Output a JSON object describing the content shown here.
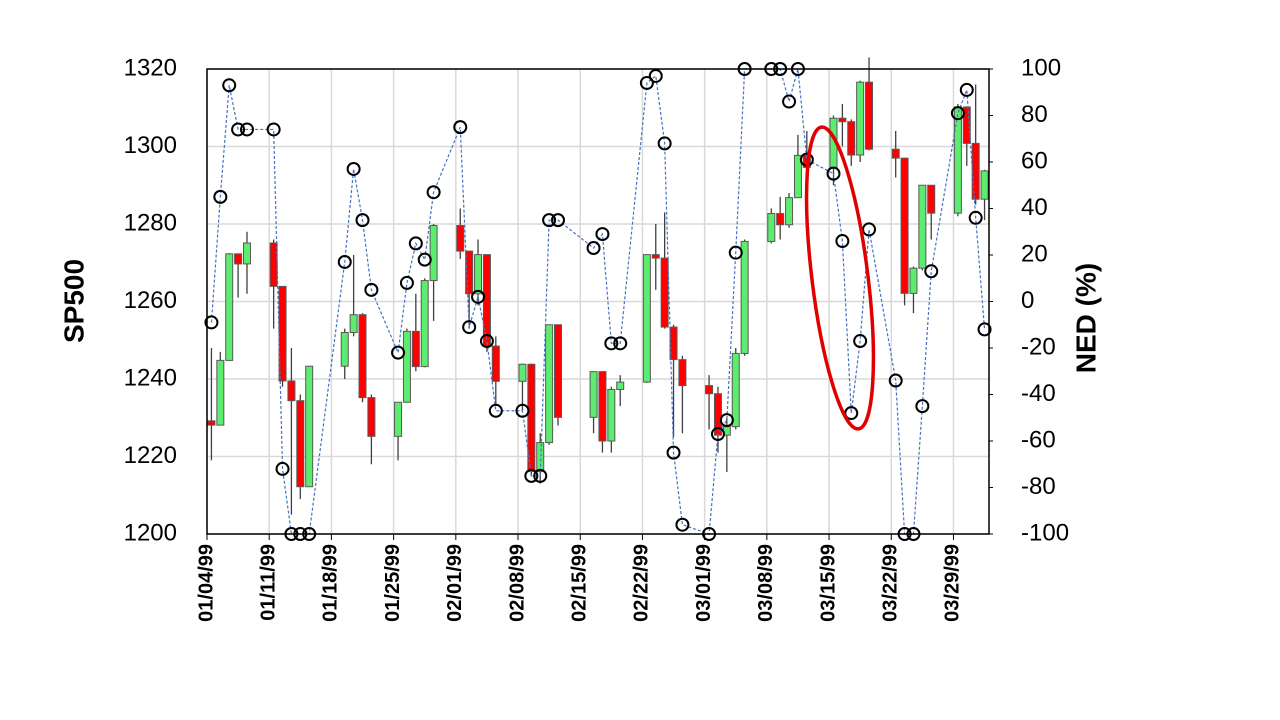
{
  "chart_data": {
    "type": "candlestick",
    "x": [
      "01/04/99",
      "01/05/99",
      "01/06/99",
      "01/07/99",
      "01/08/99",
      "01/11/99",
      "01/12/99",
      "01/13/99",
      "01/14/99",
      "01/15/99",
      "01/19/99",
      "01/20/99",
      "01/21/99",
      "01/22/99",
      "01/25/99",
      "01/26/99",
      "01/27/99",
      "01/28/99",
      "01/29/99",
      "02/01/99",
      "02/02/99",
      "02/03/99",
      "02/04/99",
      "02/05/99",
      "02/08/99",
      "02/09/99",
      "02/10/99",
      "02/11/99",
      "02/12/99",
      "02/16/99",
      "02/17/99",
      "02/18/99",
      "02/19/99",
      "02/22/99",
      "02/23/99",
      "02/24/99",
      "02/25/99",
      "02/26/99",
      "03/01/99",
      "03/02/99",
      "03/03/99",
      "03/04/99",
      "03/05/99",
      "03/08/99",
      "03/09/99",
      "03/10/99",
      "03/11/99",
      "03/12/99",
      "03/15/99",
      "03/16/99",
      "03/17/99",
      "03/18/99",
      "03/19/99",
      "03/22/99",
      "03/23/99",
      "03/24/99",
      "03/25/99",
      "03/26/99",
      "03/29/99",
      "03/30/99",
      "03/31/99",
      "04/01/99"
    ],
    "open": [
      1229.2,
      1228.1,
      1244.8,
      1272.3,
      1269.7,
      1275.1,
      1263.9,
      1239.5,
      1234.4,
      1212.2,
      1243.3,
      1252.0,
      1256.6,
      1235.2,
      1225.2,
      1234.0,
      1252.3,
      1243.2,
      1265.4,
      1279.6,
      1273.0,
      1262.0,
      1272.1,
      1248.5,
      1239.4,
      1243.8,
      1216.1,
      1223.6,
      1254.0,
      1230.1,
      1241.9,
      1224.0,
      1237.3,
      1239.2,
      1272.1,
      1271.2,
      1253.4,
      1245.0,
      1238.3,
      1236.2,
      1225.5,
      1227.7,
      1246.6,
      1275.5,
      1282.7,
      1279.8,
      1286.8,
      1297.7,
      1294.6,
      1307.3,
      1306.4,
      1297.8,
      1316.6,
      1299.3,
      1297.0,
      1262.1,
      1268.6,
      1290.0,
      1282.8,
      1310.2,
      1300.8,
      1286.4
    ],
    "high": [
      1248,
      1247,
      1272.5,
      1272.3,
      1278,
      1276,
      1264,
      1248,
      1236,
      1243.3,
      1253,
      1272,
      1257,
      1236,
      1234,
      1253,
      1262,
      1266,
      1280,
      1284,
      1273,
      1276,
      1272,
      1251,
      1244,
      1244,
      1226,
      1254,
      1254,
      1242,
      1242,
      1238,
      1241,
      1272,
      1280,
      1283,
      1254,
      1246,
      1241,
      1238,
      1230,
      1248,
      1276,
      1284,
      1287,
      1288,
      1303,
      1304,
      1308,
      1311,
      1307,
      1317,
      1323,
      1304,
      1297,
      1269,
      1290,
      1290,
      1311,
      1310,
      1316,
      1294
    ],
    "low": [
      1219,
      1228,
      1244.8,
      1261,
      1262,
      1253,
      1238,
      1205,
      1209,
      1212.2,
      1240,
      1251,
      1234,
      1218,
      1219,
      1234,
      1242,
      1243,
      1255,
      1271,
      1253,
      1259,
      1247,
      1233,
      1232,
      1215,
      1213,
      1223,
      1228,
      1226,
      1221,
      1221,
      1233,
      1239,
      1263,
      1253,
      1225,
      1226,
      1227,
      1221,
      1216,
      1227,
      1246,
      1275,
      1276,
      1279,
      1287,
      1289,
      1290,
      1300,
      1295,
      1296,
      1299,
      1292,
      1259,
      1257,
      1268,
      1276,
      1282,
      1295,
      1285,
      1281
    ],
    "close": [
      1228.1,
      1244.8,
      1272.3,
      1269.7,
      1275.1,
      1263.9,
      1239.5,
      1234.4,
      1212.2,
      1243.3,
      1252.0,
      1256.6,
      1235.2,
      1225.2,
      1234.0,
      1252.3,
      1243.2,
      1265.4,
      1279.6,
      1273.0,
      1262.0,
      1272.1,
      1248.5,
      1239.4,
      1243.8,
      1216.1,
      1223.6,
      1254.0,
      1230.1,
      1241.9,
      1224.0,
      1237.3,
      1239.2,
      1272.1,
      1271.2,
      1253.4,
      1245.0,
      1238.3,
      1236.2,
      1225.5,
      1227.7,
      1246.6,
      1275.5,
      1282.7,
      1279.8,
      1286.8,
      1297.7,
      1294.6,
      1307.3,
      1306.4,
      1297.8,
      1316.6,
      1299.3,
      1297.0,
      1262.1,
      1268.6,
      1290.0,
      1282.8,
      1310.2,
      1300.8,
      1286.4,
      1293.7
    ],
    "up_color": "#5ced6e",
    "down_color": "#ff0000",
    "line": {
      "axis": "y2",
      "color": "#4472c4",
      "values": [
        -9,
        45,
        93,
        74,
        74,
        74,
        -72,
        -100,
        -100,
        -100,
        17,
        57,
        35,
        5,
        -22,
        8,
        25,
        18,
        47,
        75,
        -11,
        2,
        -17,
        -47,
        -47,
        -75,
        -75,
        35,
        35,
        23,
        29,
        -18,
        -18,
        94,
        97,
        68,
        -65,
        -96,
        -100,
        -57,
        -51,
        21,
        100,
        100,
        100,
        86,
        100,
        61,
        55,
        26,
        -48,
        -17,
        31,
        -34,
        -100,
        -100,
        -45,
        13,
        81,
        91,
        36,
        -12
      ]
    },
    "xlim": [
      "01/04/99",
      "04/02/99"
    ],
    "xticks": [
      "01/04/99",
      "01/11/99",
      "01/18/99",
      "01/25/99",
      "02/01/99",
      "02/08/99",
      "02/15/99",
      "02/22/99",
      "03/01/99",
      "03/08/99",
      "03/15/99",
      "03/22/99",
      "03/29/99"
    ],
    "ylim": [
      1200,
      1320
    ],
    "yticks": [
      1200,
      1220,
      1240,
      1260,
      1280,
      1300,
      1320
    ],
    "y2lim": [
      -100,
      100
    ],
    "y2ticks": [
      -100,
      -80,
      -60,
      -40,
      -20,
      0,
      20,
      40,
      60,
      80,
      100
    ],
    "ylabel": "SP500",
    "y2label": "NED (%)",
    "grid": true
  }
}
